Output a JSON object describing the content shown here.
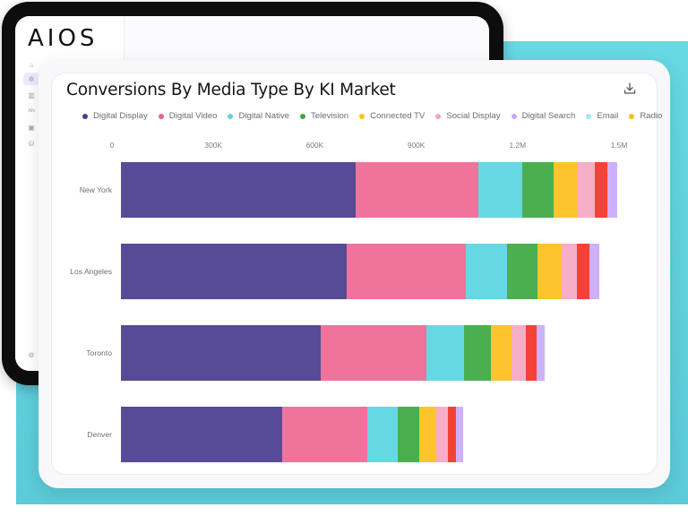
{
  "app": {
    "logo": "AIOS",
    "sidebar_icons": [
      {
        "name": "home-icon",
        "glyph": "⌂",
        "active": false
      },
      {
        "name": "sparkle-icon",
        "glyph": "✲",
        "active": true
      },
      {
        "name": "bar-chart-icon",
        "glyph": "▥",
        "active": false
      },
      {
        "name": "audience-icon",
        "glyph": "ᴬᴺ",
        "active": false
      },
      {
        "name": "document-icon",
        "glyph": "▣",
        "active": false
      },
      {
        "name": "database-icon",
        "glyph": "⛁",
        "active": false
      },
      {
        "name": "settings-icon",
        "glyph": "⚙",
        "active": false
      }
    ]
  },
  "card": {
    "title": "Conversions By Media Type By KI Market",
    "download_icon": "download-icon"
  },
  "colors": {
    "Digital Display": "#574a96",
    "Digital Video": "#f0739c",
    "Digital Native": "#66d8e3",
    "Television": "#4baf50",
    "Connected TV": "#fec42b",
    "Social Display": "#f6aec7",
    "Unlabeled Red": "#f44336",
    "Digital Search": "#cfb0fb",
    "Email": "#a6e6ef",
    "Radio": "#ffc107"
  },
  "legend": [
    {
      "label": "Digital Display",
      "color": "#4b3d91"
    },
    {
      "label": "Digital Video",
      "color": "#ef5f8d"
    },
    {
      "label": "Digital Native",
      "color": "#5fd3e0"
    },
    {
      "label": "Television",
      "color": "#3fa846"
    },
    {
      "label": "Connected TV",
      "color": "#fcc01f"
    },
    {
      "label": "Social Display",
      "color": "#f5a4bf"
    },
    {
      "label": "Digital Search",
      "color": "#c9a8f7"
    },
    {
      "label": "Email",
      "color": "#a3e6ef"
    },
    {
      "label": "Radio",
      "color": "#fbbf0e"
    }
  ],
  "chart_data": {
    "type": "bar",
    "orientation": "horizontal",
    "stacked": true,
    "title": "Conversions By Media Type By KI Market",
    "xlabel": "",
    "ylabel": "",
    "x_ticks": [
      "0",
      "300K",
      "600K",
      "900K",
      "1.2M",
      "1.5M"
    ],
    "xlim": [
      0,
      1500000
    ],
    "grid": false,
    "legend_position": "top",
    "categories": [
      "New York",
      "Los Angeles",
      "Toronto",
      "Denver"
    ],
    "series": [
      {
        "name": "Digital Display",
        "color": "#574a96",
        "values": [
          694000,
          668000,
          591000,
          477000
        ]
      },
      {
        "name": "Digital Video",
        "color": "#f0739c",
        "values": [
          363000,
          352000,
          313000,
          252000
        ]
      },
      {
        "name": "Digital Native",
        "color": "#66d8e3",
        "values": [
          130000,
          122000,
          111000,
          90000
        ]
      },
      {
        "name": "Television",
        "color": "#4baf50",
        "values": [
          93000,
          90000,
          80000,
          64000
        ]
      },
      {
        "name": "Connected TV",
        "color": "#fec42b",
        "values": [
          72000,
          72000,
          61000,
          50000
        ]
      },
      {
        "name": "Social Display",
        "color": "#f6aec7",
        "values": [
          50000,
          45000,
          42000,
          34000
        ]
      },
      {
        "name": "",
        "color": "#f44336",
        "values": [
          37000,
          37000,
          32000,
          24000
        ]
      },
      {
        "name": "Digital Search",
        "color": "#cfb0fb",
        "values": [
          29000,
          29000,
          24000,
          21000
        ]
      },
      {
        "name": "Email",
        "color": "#a6e6ef",
        "values": [
          0,
          0,
          0,
          0
        ]
      },
      {
        "name": "Radio",
        "color": "#ffc107",
        "values": [
          0,
          0,
          0,
          0
        ]
      }
    ]
  }
}
